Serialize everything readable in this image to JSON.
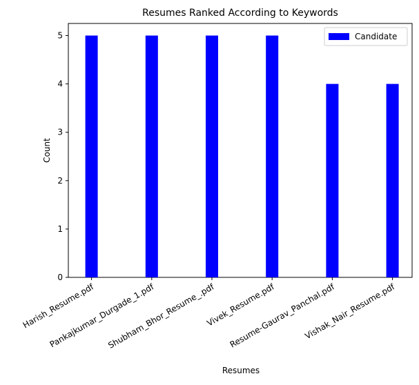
{
  "chart_data": {
    "type": "bar",
    "title": "Resumes Ranked According to Keywords",
    "xlabel": "Resumes",
    "ylabel": "Count",
    "categories": [
      "Harish_Resume.pdf",
      "Pankajkumar_Durgade_1.pdf",
      "Shubham_Bhor_Resume_.pdf",
      "Vivek_Resume.pdf",
      "Resume-Gaurav_Panchal.pdf",
      "Vishak_Nair_Resume.pdf"
    ],
    "series": [
      {
        "name": "Candidate",
        "values": [
          5,
          5,
          5,
          5,
          4,
          4
        ],
        "color": "#0000ff"
      }
    ],
    "ylim": [
      0,
      5.25
    ],
    "yticks": [
      "0",
      "1",
      "2",
      "3",
      "4",
      "5"
    ],
    "grid": false,
    "legend": "top-right"
  }
}
